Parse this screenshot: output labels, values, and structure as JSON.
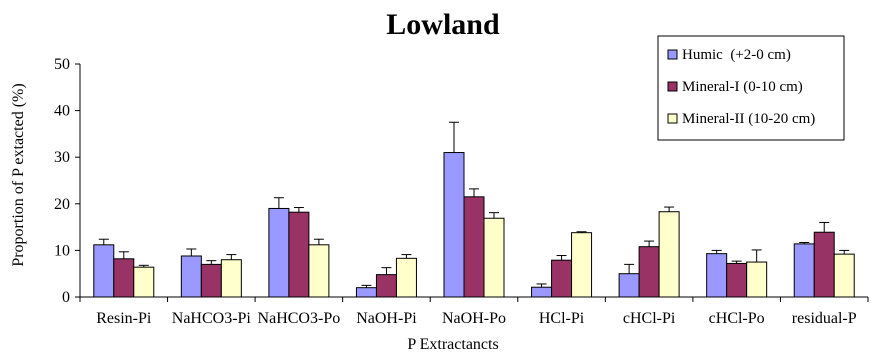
{
  "chart_data": {
    "type": "bar",
    "title": "Lowland",
    "xlabel": "P Extractancts",
    "ylabel": "Proportion of P extacted (%)",
    "ylim": [
      0,
      50
    ],
    "yticks": [
      "0",
      "10",
      "20",
      "30",
      "40",
      "50"
    ],
    "grid": false,
    "legend_position": "top-right",
    "categories": [
      "Resin-Pi",
      "NaHCO3-Pi",
      "NaHCO3-Po",
      "NaOH-Pi",
      "NaOH-Po",
      "HCl-Pi",
      "cHCl-Pi",
      "cHCl-Po",
      "residual-P"
    ],
    "series": [
      {
        "name": "Humic  (+2-0 cm)",
        "color": "#9999ff",
        "values": [
          11.2,
          8.8,
          19.0,
          2.0,
          31.0,
          2.1,
          5.0,
          9.3,
          11.4
        ],
        "errors": [
          1.2,
          1.5,
          2.3,
          0.5,
          6.5,
          0.7,
          2.0,
          0.7,
          0.3
        ]
      },
      {
        "name": "Mineral-I (0-10 cm)",
        "color": "#993366",
        "values": [
          8.2,
          7.0,
          18.2,
          4.8,
          21.5,
          7.9,
          10.8,
          7.2,
          13.9
        ],
        "errors": [
          1.5,
          0.8,
          1.0,
          1.5,
          1.7,
          1.0,
          1.2,
          0.5,
          2.1
        ]
      },
      {
        "name": "Mineral-II (10-20 cm)",
        "color": "#ffffcc",
        "values": [
          6.4,
          8.0,
          11.2,
          8.3,
          16.9,
          13.8,
          18.3,
          7.5,
          9.2
        ],
        "errors": [
          0.4,
          1.1,
          1.2,
          0.8,
          1.2,
          0.2,
          1.0,
          2.6,
          0.8
        ]
      }
    ]
  }
}
